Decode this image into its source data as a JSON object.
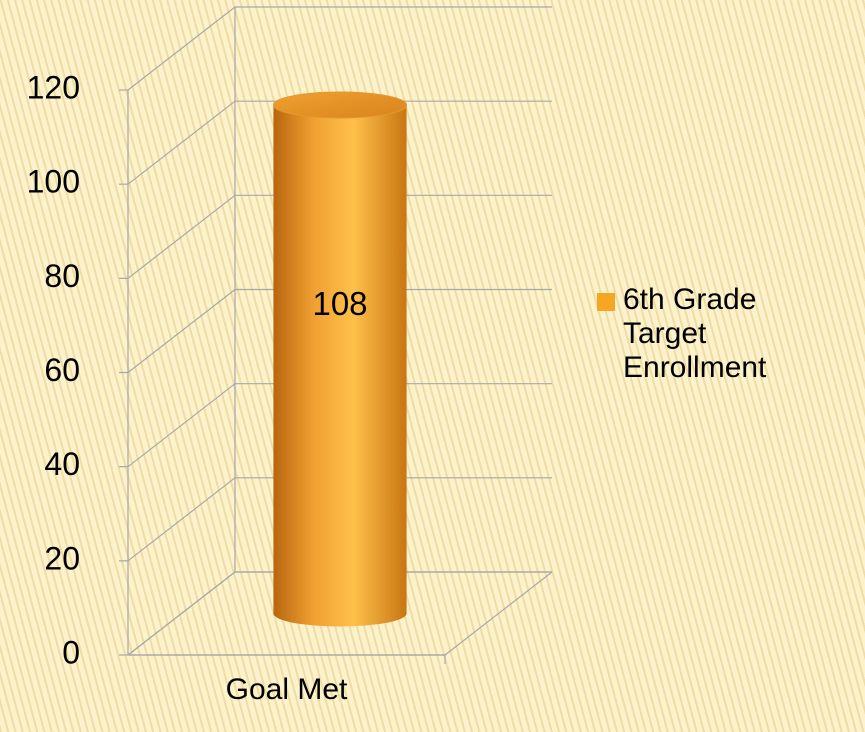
{
  "chart_data": {
    "type": "bar",
    "categories": [
      "Goal Met"
    ],
    "series": [
      {
        "name": "6th Grade Target Enrollment",
        "color": "#f5a623",
        "values": [
          108
        ]
      }
    ],
    "ylim": [
      0,
      120
    ],
    "yticks": [
      0,
      20,
      40,
      60,
      80,
      100,
      120
    ],
    "grid": true,
    "legend": "right",
    "data_labels": true
  }
}
